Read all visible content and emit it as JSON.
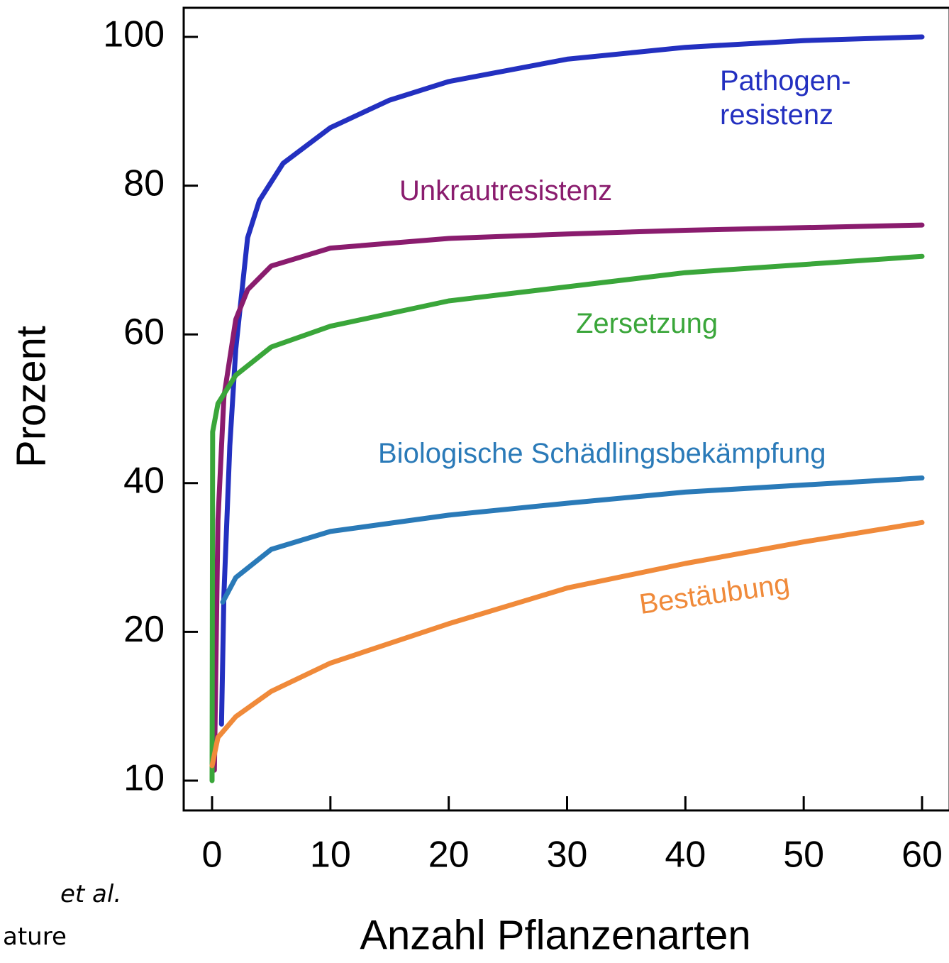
{
  "chart_data": {
    "type": "line",
    "xlabel": "Anzahl Pflanzenarten",
    "ylabel": "Prozent",
    "xlim": [
      0,
      60
    ],
    "xticks": [
      0,
      10,
      20,
      30,
      40,
      50,
      60
    ],
    "ylim": [
      10,
      100
    ],
    "yticks": [
      10,
      20,
      40,
      60,
      80,
      100
    ],
    "series": [
      {
        "name": "Pathogen-\nresistenz",
        "color": "#2330c0",
        "x": [
          0.8,
          1,
          1.5,
          2,
          3,
          4,
          6,
          10,
          15,
          20,
          30,
          40,
          50,
          60
        ],
        "values": [
          13.8,
          25,
          45,
          58,
          73,
          78,
          83,
          87.8,
          91.5,
          94,
          97,
          98.6,
          99.5,
          100
        ]
      },
      {
        "name": "Unkrautresistenz",
        "color": "#8a1c6e",
        "x": [
          0.2,
          0.5,
          1,
          2,
          3,
          5,
          10,
          20,
          30,
          40,
          60
        ],
        "values": [
          10.7,
          35,
          51.6,
          62,
          66,
          69.2,
          71.6,
          72.9,
          73.5,
          74,
          74.7
        ]
      },
      {
        "name": "Zersetzung",
        "color": "#3aa63a",
        "x": [
          0,
          0.05,
          0.5,
          2,
          5,
          10,
          20,
          30,
          40,
          60
        ],
        "values": [
          10,
          46.9,
          50.7,
          54.5,
          58.3,
          61.1,
          64.5,
          66.4,
          68.3,
          70.5
        ]
      },
      {
        "name": "Biologische Schädlingsbekämpfung",
        "color": "#2a7ab8",
        "x": [
          0.9,
          2,
          5,
          10,
          20,
          30,
          40,
          60
        ],
        "values": [
          24,
          27.3,
          31.1,
          33.5,
          35.7,
          37.3,
          38.8,
          40.7
        ]
      },
      {
        "name": "Bestäubung",
        "color": "#f08a3a",
        "x": [
          0,
          0.5,
          2,
          5,
          10,
          20,
          30,
          40,
          50,
          60
        ],
        "values": [
          11,
          12.9,
          14.3,
          16,
          17.9,
          21.1,
          25.9,
          29.2,
          32.1,
          34.7
        ]
      }
    ]
  },
  "clipped_text": [
    "et al.",
    "ature"
  ]
}
